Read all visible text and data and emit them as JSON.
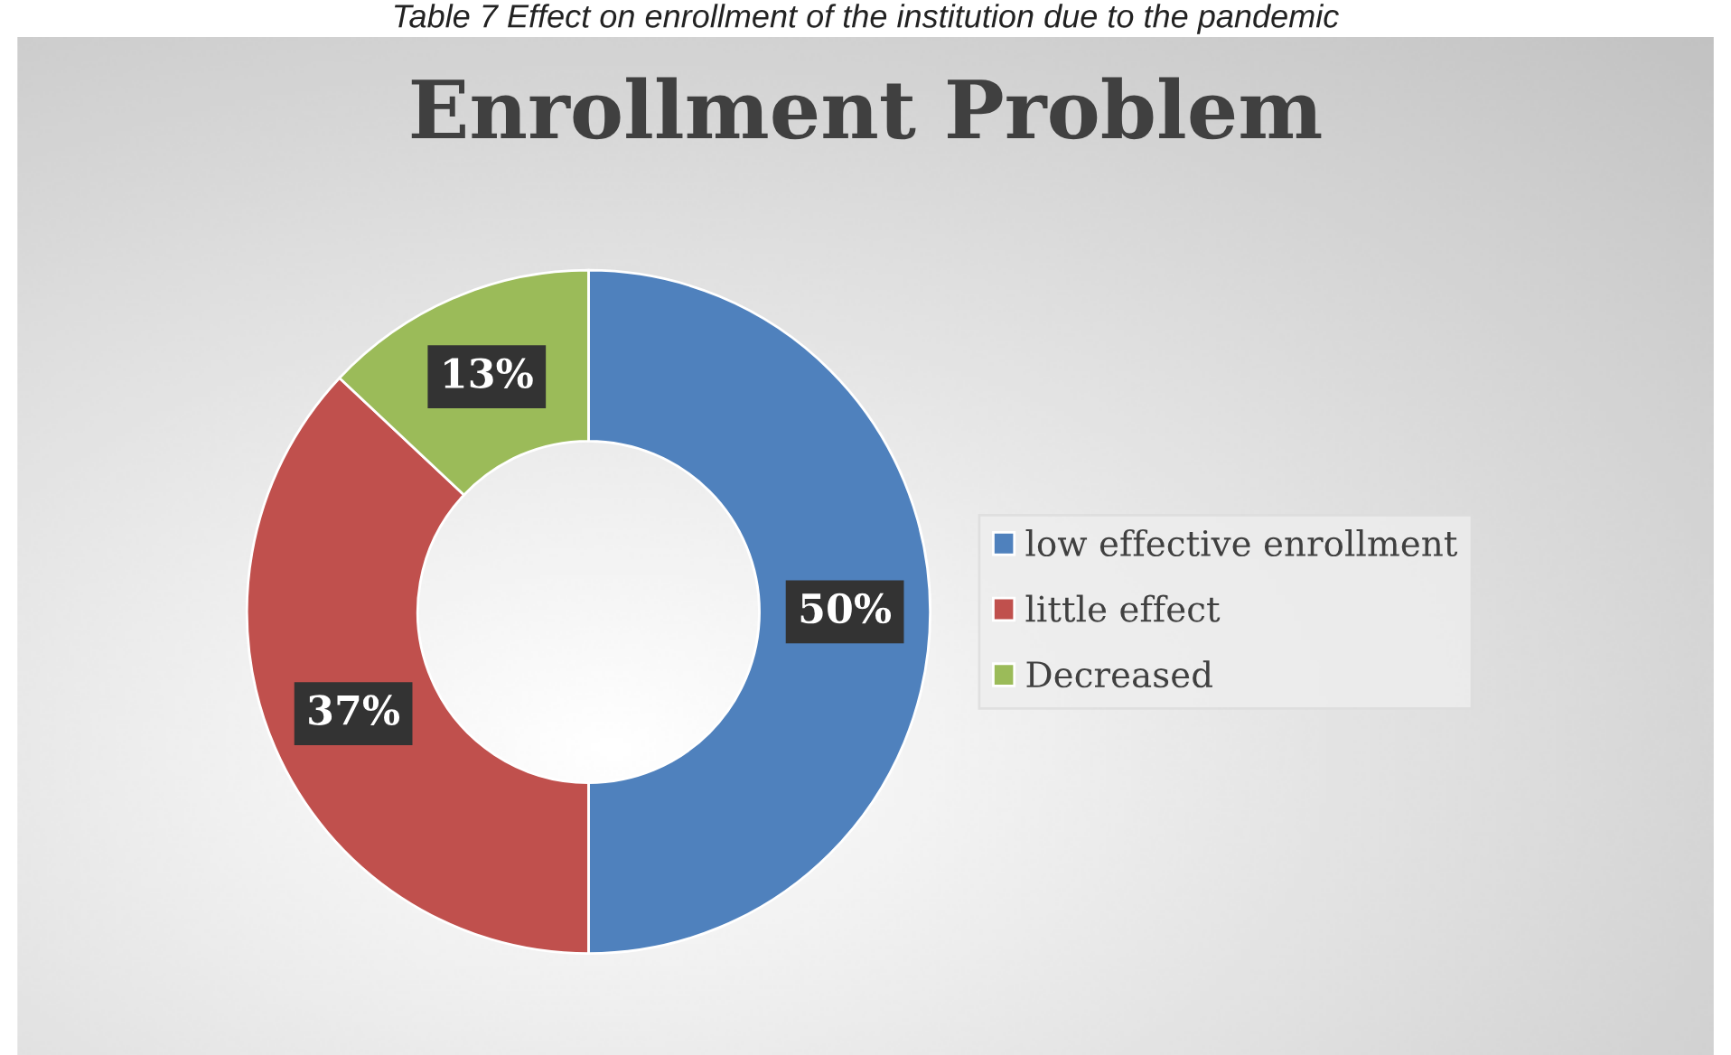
{
  "chart_data": {
    "type": "donut",
    "title": "Enrollment Problem",
    "annotations": [
      "Table 7 Effect on enrollment of the institution due to the pandemic"
    ],
    "categories": [
      "low effective enrollment",
      "little effect",
      "Decreased"
    ],
    "values": [
      50,
      37,
      13
    ],
    "value_labels": [
      "50%",
      "37%",
      "13%"
    ],
    "colors": [
      "#4f81bd",
      "#c0504d",
      "#9bbb59"
    ],
    "legend": "right"
  }
}
